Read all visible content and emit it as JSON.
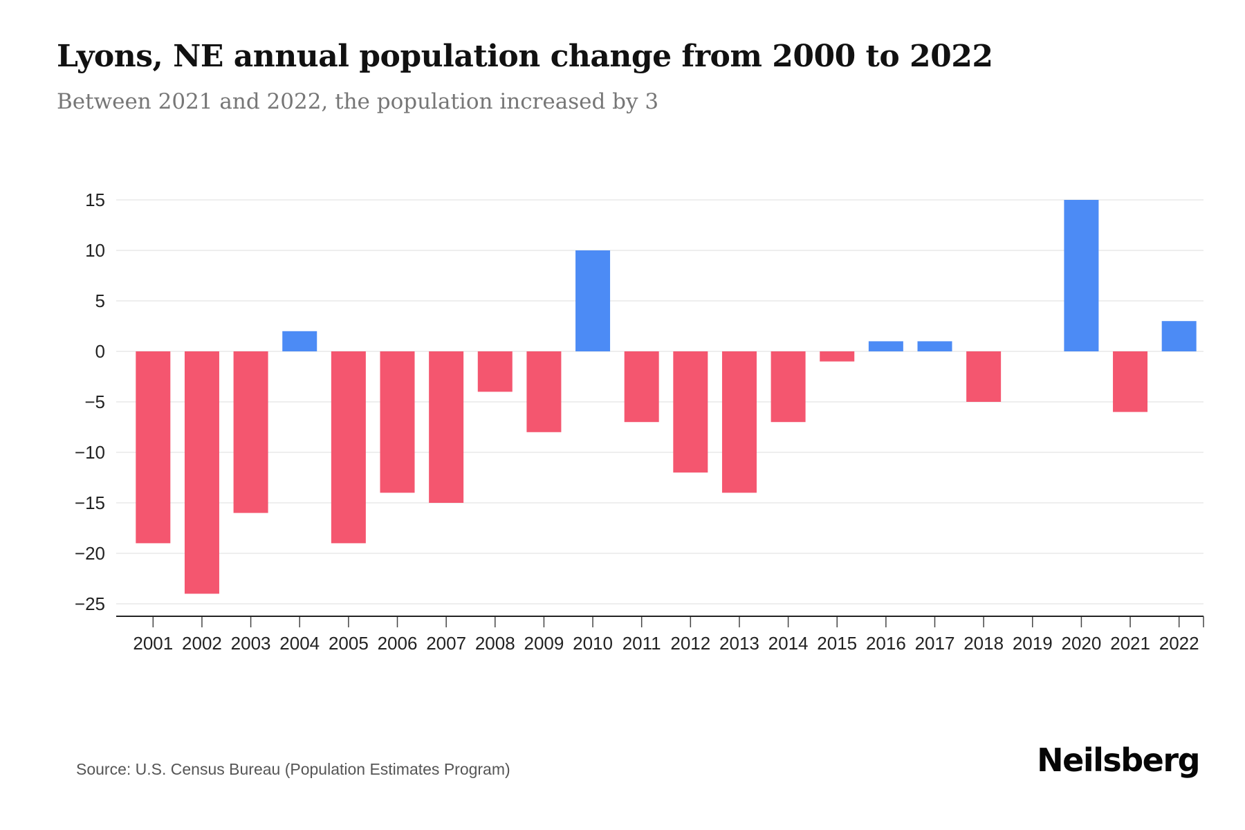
{
  "chart_data": {
    "type": "bar",
    "title": "Lyons, NE annual population change from 2000 to 2022",
    "subtitle": "Between 2021 and 2022, the population increased by 3",
    "xlabel": "",
    "ylabel": "",
    "categories": [
      "2001",
      "2002",
      "2003",
      "2004",
      "2005",
      "2006",
      "2007",
      "2008",
      "2009",
      "2010",
      "2011",
      "2012",
      "2013",
      "2014",
      "2015",
      "2016",
      "2017",
      "2018",
      "2019",
      "2020",
      "2021",
      "2022"
    ],
    "values": [
      -19,
      -24,
      -16,
      2,
      -19,
      -14,
      -15,
      -4,
      -8,
      10,
      -7,
      -12,
      -14,
      -7,
      -1,
      1,
      1,
      -5,
      0,
      15,
      -6,
      3
    ],
    "ylim": [
      -25,
      15
    ],
    "yticks": [
      15,
      10,
      5,
      0,
      -5,
      -10,
      -15,
      -20,
      -25
    ],
    "grid": true,
    "legend": "none",
    "positive_color": "#4C8BF5",
    "negative_color": "#F4566F",
    "gridline_color": "#e9e9e9",
    "axis_line_color": "#222222",
    "tick_label_color": "#222222"
  },
  "footer": {
    "source": "Source: U.S. Census Bureau (Population Estimates Program)",
    "brand": "Neilsberg"
  }
}
